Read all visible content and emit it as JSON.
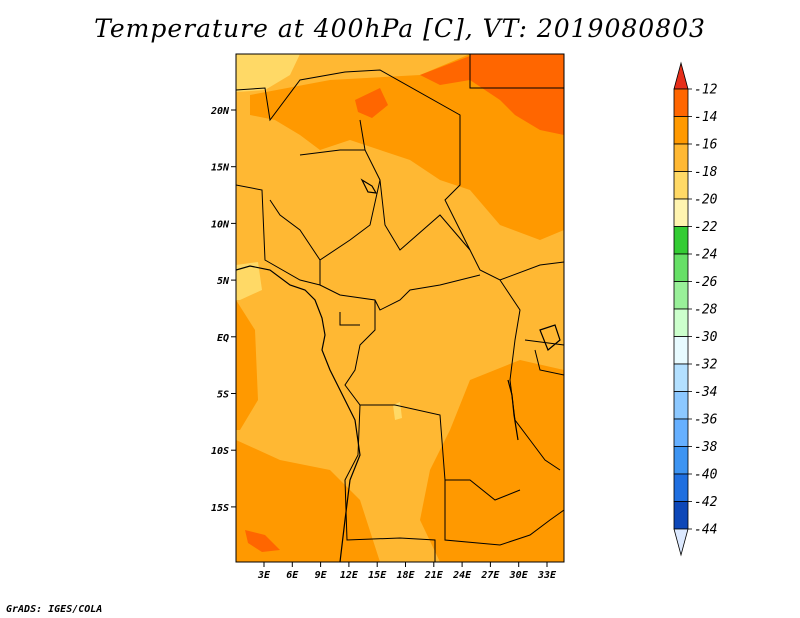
{
  "title": "Temperature at 400hPa [C], VT: 2019080803",
  "footer": "GrADS: IGES/COLA",
  "map": {
    "lat_ticks": [
      "20N",
      "15N",
      "10N",
      "5N",
      "EQ",
      "5S",
      "10S",
      "15S"
    ],
    "lon_ticks": [
      "3E",
      "6E",
      "9E",
      "12E",
      "15E",
      "18E",
      "21E",
      "24E",
      "27E",
      "30E",
      "33E"
    ]
  },
  "colorbar": {
    "labels": [
      "-12",
      "-14",
      "-16",
      "-18",
      "-20",
      "-22",
      "-24",
      "-26",
      "-28",
      "-30",
      "-32",
      "-34",
      "-36",
      "-38",
      "-40",
      "-42",
      "-44"
    ],
    "colors": [
      "#ff6600",
      "#ff9900",
      "#ffb833",
      "#ffd966",
      "#fff4b0",
      "#33cc33",
      "#66e066",
      "#99f099",
      "#ccffcc",
      "#e8fbff",
      "#b3e0ff",
      "#8cc8ff",
      "#66b0ff",
      "#3d94f2",
      "#1f6fe0",
      "#0d47b8",
      "#0b1f7a"
    ],
    "top_color": "#e62e1a",
    "bottom_color": "#dce9ff"
  }
}
